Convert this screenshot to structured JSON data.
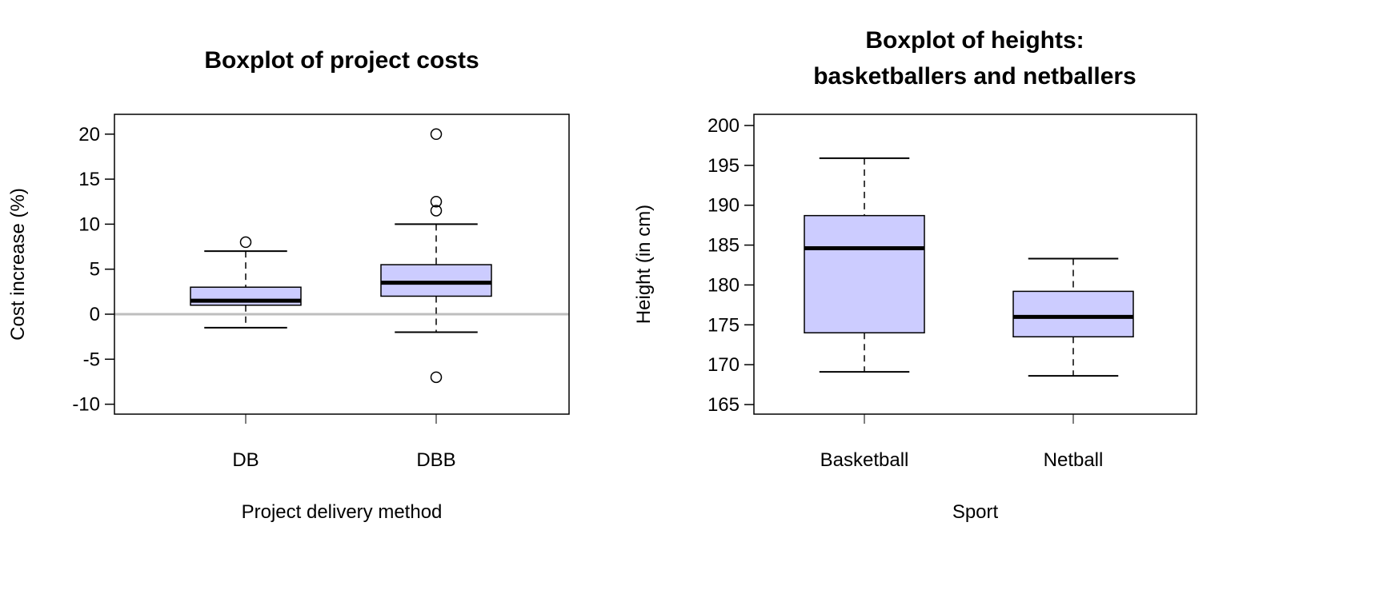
{
  "chart_data": [
    {
      "type": "box",
      "title": [
        "Boxplot of project costs"
      ],
      "xlabel": "Project delivery method",
      "ylabel": "Cost increase (%)",
      "ylim": [
        -11.1,
        22.2
      ],
      "yticks": [
        -10,
        -5,
        0,
        5,
        10,
        15,
        20
      ],
      "categories": [
        "DB",
        "DBB"
      ],
      "reference_line": {
        "y": 0,
        "color": "#bebebe"
      },
      "box_color": "#ccccff",
      "boxes": [
        {
          "category": "DB",
          "whisker_low": -1.5,
          "q1": 1,
          "median": 1.5,
          "q3": 3,
          "whisker_high": 7,
          "outliers": [
            8
          ]
        },
        {
          "category": "DBB",
          "whisker_low": -2,
          "q1": 2,
          "median": 3.5,
          "q3": 5.5,
          "whisker_high": 10,
          "outliers": [
            20,
            12.5,
            11.5,
            -7
          ]
        }
      ],
      "grid": false
    },
    {
      "type": "box",
      "title": [
        "Boxplot of heights:",
        "basketballers and netballers"
      ],
      "xlabel": "Sport",
      "ylabel": "Height (in cm)",
      "ylim": [
        163.8,
        201.4
      ],
      "yticks": [
        165,
        170,
        175,
        180,
        185,
        190,
        195,
        200
      ],
      "categories": [
        "Basketball",
        "Netball"
      ],
      "box_color": "#ccccff",
      "boxes": [
        {
          "category": "Basketball",
          "whisker_low": 169.1,
          "q1": 174,
          "median": 184.6,
          "q3": 188.7,
          "whisker_high": 195.9,
          "outliers": []
        },
        {
          "category": "Netball",
          "whisker_low": 168.6,
          "q1": 173.5,
          "median": 176,
          "q3": 179.2,
          "whisker_high": 183.3,
          "outliers": []
        }
      ],
      "grid": false
    }
  ]
}
